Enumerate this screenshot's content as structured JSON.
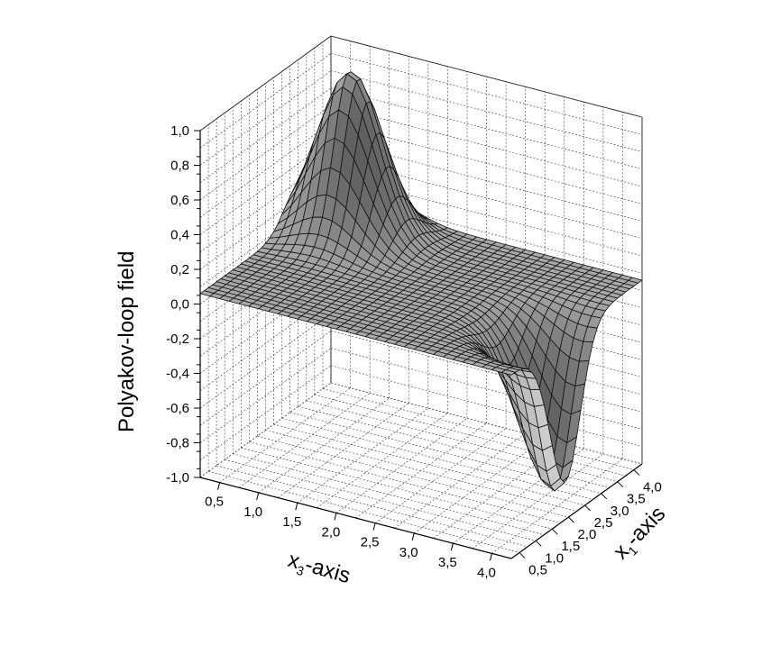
{
  "chart_data": {
    "type": "surface3d",
    "zlabel": "Polyakov-loop field",
    "xlabel_main": "x",
    "xlabel_sub": "3",
    "xlabel_suffix": "-axis",
    "ylabel_main": "x",
    "ylabel_sub": "1",
    "ylabel_suffix": "-axis",
    "x_ticks": [
      "0,5",
      "1,0",
      "1,5",
      "2,0",
      "2,5",
      "3,0",
      "3,5",
      "4,0"
    ],
    "y_ticks": [
      "0,5",
      "1,0",
      "1,5",
      "2,0",
      "2,5",
      "3,0",
      "3,5",
      "4,0"
    ],
    "z_ticks": [
      "-1,0",
      "-0,8",
      "-0,6",
      "-0,4",
      "-0,2",
      "0,0",
      "0,2",
      "0,4",
      "0,6",
      "0,8",
      "1,0"
    ],
    "x_range": [
      0.25,
      4.25
    ],
    "y_range": [
      0.25,
      4.25
    ],
    "z_range": [
      -1.0,
      1.0
    ],
    "surface": {
      "baseline": 0.06,
      "peak": {
        "x3": 0.9,
        "x1": 3.3,
        "value": 1.0
      },
      "trough": {
        "x3": 4.1,
        "x1": 1.9,
        "value": -0.85
      }
    },
    "colors": {
      "surface": "#bdbdbd",
      "background": "#ffffff"
    }
  }
}
